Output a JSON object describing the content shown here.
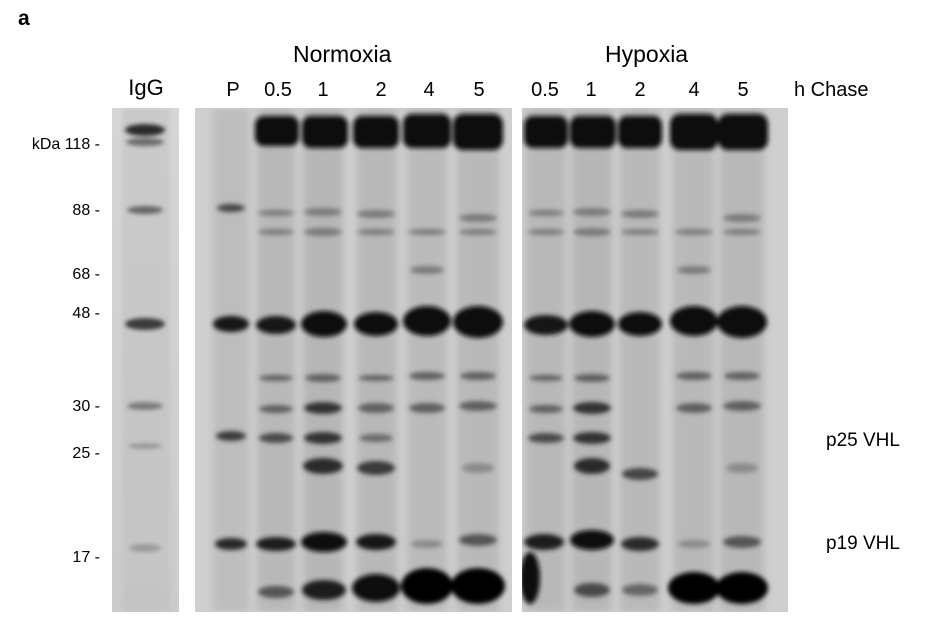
{
  "panel_label": "a",
  "groups": {
    "normoxia": "Normoxia",
    "hypoxia": "Hypoxia"
  },
  "lanes": {
    "igg": "IgG",
    "normoxia": [
      "P",
      "0.5",
      "1",
      "2",
      "4",
      "5"
    ],
    "hypoxia": [
      "0.5",
      "1",
      "2",
      "4",
      "5"
    ],
    "chase_unit": "h Chase"
  },
  "mw_markers": [
    "kDa 118 -",
    "88 -",
    "68 -",
    "48 -",
    "30 -",
    "25 -",
    "17 -"
  ],
  "bands": {
    "p25": "p25 VHL",
    "p19": "p19 VHL"
  },
  "colors": {
    "background": "#ffffff",
    "gel": "#c9c9c9",
    "band": "#111111"
  }
}
